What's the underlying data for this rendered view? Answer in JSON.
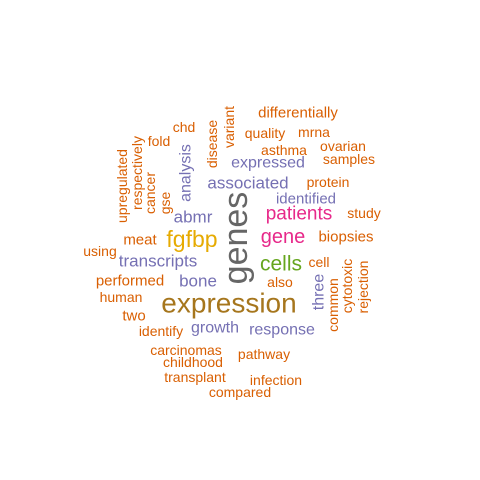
{
  "colors": {
    "orange": "#d95f02",
    "purple": "#7570b3",
    "magenta": "#e7298a",
    "green": "#66a61e",
    "gold": "#e6ab02",
    "brown": "#a6761d",
    "gray": "#666666"
  },
  "words": [
    {
      "text": "genes",
      "color": "gray",
      "rotated": true
    },
    {
      "text": "expression",
      "color": "brown",
      "rotated": false
    },
    {
      "text": "fgfbp",
      "color": "gold",
      "rotated": false
    },
    {
      "text": "cells",
      "color": "green",
      "rotated": false
    },
    {
      "text": "gene",
      "color": "magenta",
      "rotated": false
    },
    {
      "text": "patients",
      "color": "magenta",
      "rotated": false
    },
    {
      "text": "associated",
      "color": "purple",
      "rotated": false
    },
    {
      "text": "expressed",
      "color": "purple",
      "rotated": false
    },
    {
      "text": "analysis",
      "color": "purple",
      "rotated": true
    },
    {
      "text": "abmr",
      "color": "purple",
      "rotated": false
    },
    {
      "text": "transcripts",
      "color": "purple",
      "rotated": false
    },
    {
      "text": "bone",
      "color": "purple",
      "rotated": false
    },
    {
      "text": "growth",
      "color": "purple",
      "rotated": false
    },
    {
      "text": "response",
      "color": "purple",
      "rotated": false
    },
    {
      "text": "identified",
      "color": "purple",
      "rotated": false
    },
    {
      "text": "three",
      "color": "purple",
      "rotated": true
    },
    {
      "text": "differentially",
      "color": "orange",
      "rotated": false
    },
    {
      "text": "quality",
      "color": "orange",
      "rotated": false
    },
    {
      "text": "mrna",
      "color": "orange",
      "rotated": false
    },
    {
      "text": "chd",
      "color": "orange",
      "rotated": false
    },
    {
      "text": "disease",
      "color": "orange",
      "rotated": true
    },
    {
      "text": "variant",
      "color": "orange",
      "rotated": true
    },
    {
      "text": "fold",
      "color": "orange",
      "rotated": false
    },
    {
      "text": "asthma",
      "color": "orange",
      "rotated": false
    },
    {
      "text": "ovarian",
      "color": "orange",
      "rotated": false
    },
    {
      "text": "samples",
      "color": "orange",
      "rotated": false
    },
    {
      "text": "protein",
      "color": "orange",
      "rotated": false
    },
    {
      "text": "study",
      "color": "orange",
      "rotated": false
    },
    {
      "text": "biopsies",
      "color": "orange",
      "rotated": false
    },
    {
      "text": "upregulated",
      "color": "orange",
      "rotated": true
    },
    {
      "text": "respectively",
      "color": "orange",
      "rotated": true
    },
    {
      "text": "cancer",
      "color": "orange",
      "rotated": true
    },
    {
      "text": "gse",
      "color": "orange",
      "rotated": true
    },
    {
      "text": "meat",
      "color": "orange",
      "rotated": false
    },
    {
      "text": "using",
      "color": "orange",
      "rotated": false
    },
    {
      "text": "performed",
      "color": "orange",
      "rotated": false
    },
    {
      "text": "human",
      "color": "orange",
      "rotated": false
    },
    {
      "text": "two",
      "color": "orange",
      "rotated": false
    },
    {
      "text": "identify",
      "color": "orange",
      "rotated": false
    },
    {
      "text": "also",
      "color": "orange",
      "rotated": false
    },
    {
      "text": "cell",
      "color": "orange",
      "rotated": false
    },
    {
      "text": "common",
      "color": "orange",
      "rotated": true
    },
    {
      "text": "cytotoxic",
      "color": "orange",
      "rotated": true
    },
    {
      "text": "rejection",
      "color": "orange",
      "rotated": true
    },
    {
      "text": "carcinomas",
      "color": "orange",
      "rotated": false
    },
    {
      "text": "pathway",
      "color": "orange",
      "rotated": false
    },
    {
      "text": "childhood",
      "color": "orange",
      "rotated": false
    },
    {
      "text": "transplant",
      "color": "orange",
      "rotated": false
    },
    {
      "text": "infection",
      "color": "orange",
      "rotated": false
    },
    {
      "text": "compared",
      "color": "orange",
      "rotated": false
    }
  ]
}
